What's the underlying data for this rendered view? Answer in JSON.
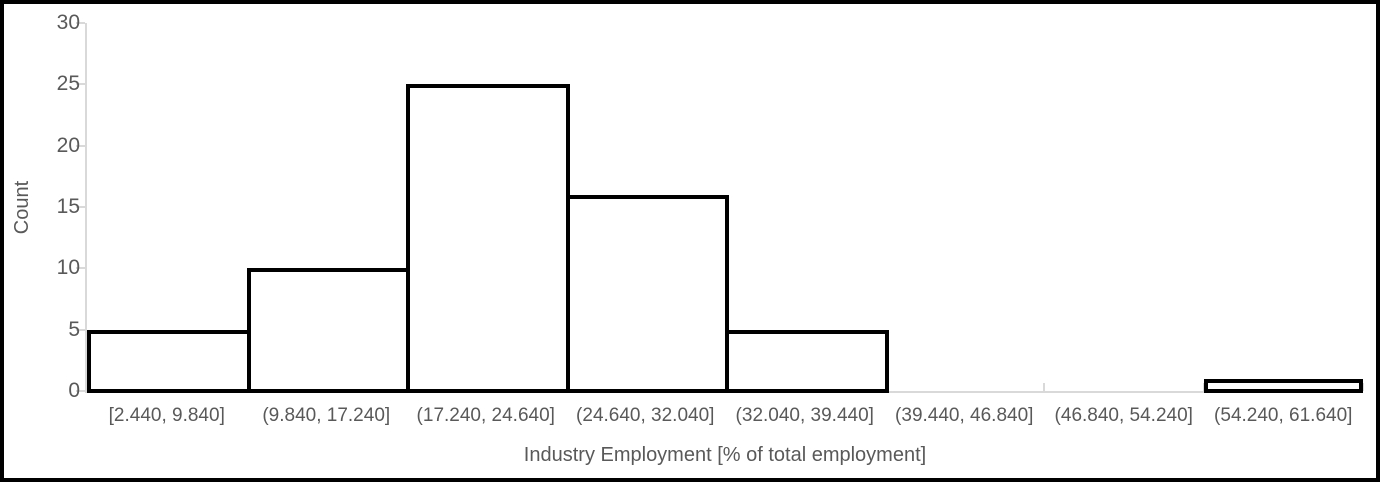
{
  "chart_data": {
    "type": "bar",
    "subtype": "histogram",
    "title": "",
    "xlabel": "Industry Employment [% of total employment]",
    "ylabel": "Count",
    "categories": [
      "[2.440, 9.840]",
      "(9.840, 17.240]",
      "(17.240, 24.640]",
      "(24.640, 32.040]",
      "(32.040, 39.440]",
      "(39.440, 46.840]",
      "(46.840, 54.240]",
      "(54.240, 61.640]"
    ],
    "values": [
      5,
      10,
      25,
      16,
      5,
      0,
      0,
      1
    ],
    "ylim": [
      0,
      30
    ],
    "yticks": [
      0,
      5,
      10,
      15,
      20,
      25,
      30
    ],
    "grid": false,
    "legend_position": "none",
    "colors": {
      "bar_fill": "#ffffff",
      "bar_border": "#000000",
      "axis_line": "#d9d9d9",
      "text": "#595959",
      "background": "#ffffff",
      "frame_border": "#000000"
    }
  }
}
